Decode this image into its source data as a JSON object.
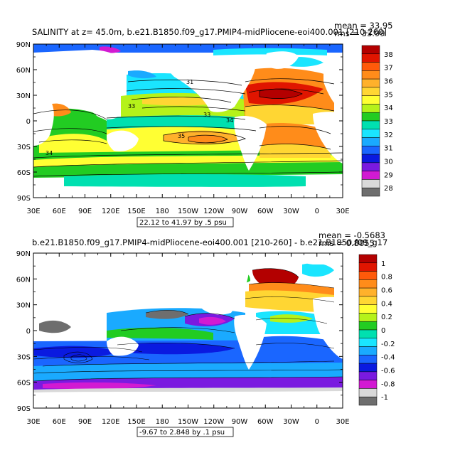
{
  "chart_data": [
    {
      "type": "heatmap",
      "title": "SALINITY at z=  45.0m, b.e21.B1850.f09_g17.PMIP4-midPliocene-eoi400.001 [210-260]",
      "stats": [
        "mean = 33.95",
        "rms = 33.99"
      ],
      "contour_info": "22.12 to 41.97 by .5 psu",
      "contour_labels": [
        "31",
        "33",
        "33",
        "34",
        "35",
        "34"
      ],
      "xticks": [
        "30E",
        "60E",
        "90E",
        "120E",
        "150E",
        "180",
        "150W",
        "120W",
        "90W",
        "60W",
        "30W",
        "0",
        "30E"
      ],
      "yticks": [
        "90N",
        "60N",
        "30N",
        "0",
        "30S",
        "60S",
        "90S"
      ],
      "xlim": [
        30,
        390
      ],
      "ylim": [
        -90,
        90
      ],
      "colorbar": {
        "labels": [
          "38",
          "37",
          "36",
          "35",
          "34",
          "33",
          "32",
          "31",
          "30",
          "29",
          "28"
        ],
        "colors": [
          "#b30000",
          "#e01500",
          "#ff5a0a",
          "#ff8c1a",
          "#ffb12b",
          "#ffd633",
          "#ffff33",
          "#b5f21a",
          "#22cc22",
          "#00e0b0",
          "#1ae5ff",
          "#1aaaff",
          "#1a66ff",
          "#0a1ae0",
          "#7a1ae0",
          "#d21ad2",
          "#d9d9d9",
          "#6e6e6e"
        ]
      }
    },
    {
      "type": "heatmap",
      "title": "b.e21.B1850.f09_g17.PMIP4-midPliocene-eoi400.001 [210-260] - b.e21.B1850.f09_g17",
      "stats": [
        "mean = -0.5683",
        "rms = 0.8055"
      ],
      "contour_info": "-9.67 to 2.848 by .1 psu",
      "xticks": [
        "30E",
        "60E",
        "90E",
        "120E",
        "150E",
        "180",
        "150W",
        "120W",
        "90W",
        "60W",
        "30W",
        "0",
        "30E"
      ],
      "yticks": [
        "90N",
        "60N",
        "30N",
        "0",
        "30S",
        "60S",
        "90S"
      ],
      "xlim": [
        30,
        390
      ],
      "ylim": [
        -90,
        90
      ],
      "colorbar": {
        "labels": [
          "1",
          "0.8",
          "0.6",
          "0.4",
          "0.2",
          "0",
          "-0.2",
          "-0.4",
          "-0.6",
          "-0.8",
          "-1"
        ],
        "colors": [
          "#b30000",
          "#e01500",
          "#ff5a0a",
          "#ff8c1a",
          "#ffb12b",
          "#ffd633",
          "#ffff33",
          "#b5f21a",
          "#22cc22",
          "#00e0b0",
          "#1ae5ff",
          "#1aaaff",
          "#1a66ff",
          "#0a1ae0",
          "#7a1ae0",
          "#d21ad2",
          "#d9d9d9",
          "#6e6e6e"
        ]
      }
    }
  ]
}
